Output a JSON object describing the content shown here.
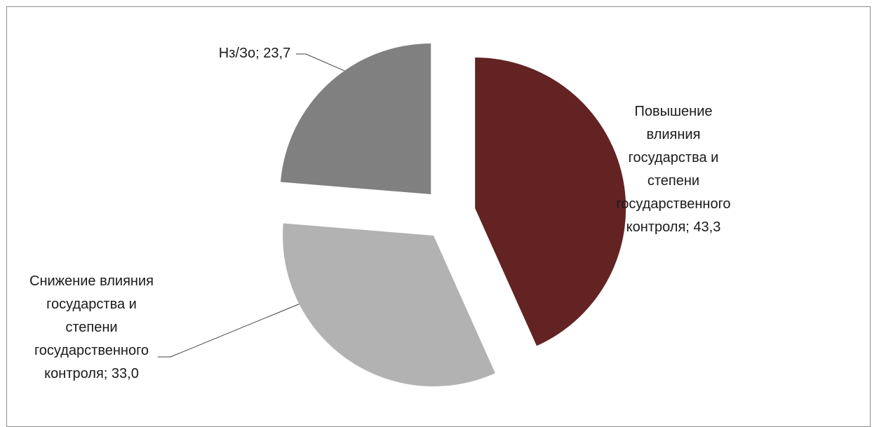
{
  "chart_data": {
    "type": "pie",
    "title": "",
    "slices": [
      {
        "label": "Повышение\nвлияния\nгосударства и\nстепени\nгосударственного\nконтроля; 43,3",
        "value": 43.3,
        "color": "#632323"
      },
      {
        "label": "Снижение влияния\nгосударства и\nстепени\nгосударственного\nконтроля; 33,0",
        "value": 33.0,
        "color": "#b2b2b2"
      },
      {
        "label": "Нз/Зо; 23,7",
        "value": 23.7,
        "color": "#808080"
      }
    ],
    "legend": "none",
    "exploded": true
  }
}
